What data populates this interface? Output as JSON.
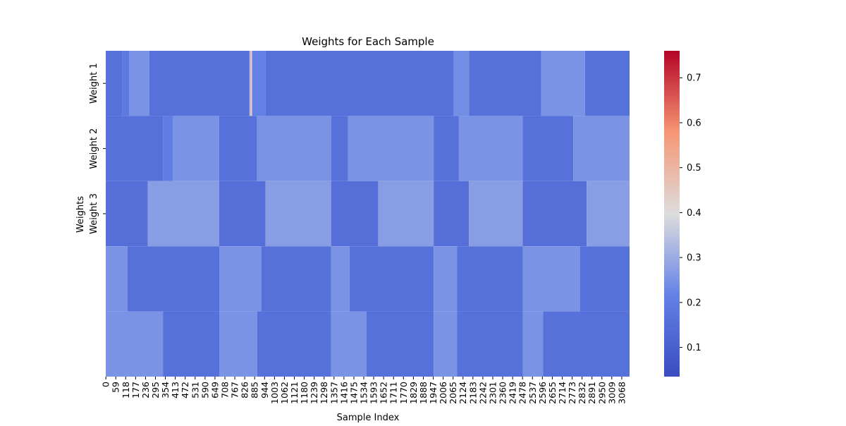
{
  "chart_data": {
    "type": "heatmap",
    "title": "Weights for Each Sample",
    "xlabel": "Sample Index",
    "ylabel": "Weights",
    "row_labels": [
      "Weight 1",
      "Weight 2",
      "Weight 3",
      "",
      ""
    ],
    "x_ticks": [
      0,
      59,
      118,
      177,
      236,
      295,
      354,
      413,
      472,
      531,
      590,
      649,
      708,
      767,
      826,
      885,
      944,
      1003,
      1062,
      1121,
      1180,
      1239,
      1298,
      1357,
      1416,
      1475,
      1534,
      1593,
      1652,
      1711,
      1770,
      1829,
      1888,
      1947,
      2006,
      2065,
      2124,
      2183,
      2242,
      2301,
      2360,
      2419,
      2478,
      2537,
      2596,
      2655,
      2714,
      2773,
      2832,
      2891,
      2950,
      3009,
      3068
    ],
    "x_range": [
      0,
      3115
    ],
    "colorbar": {
      "ticks": [
        0.1,
        0.2,
        0.3,
        0.4,
        0.5,
        0.6,
        0.7
      ],
      "vmin": 0.035,
      "vmax": 0.76,
      "colormap": "coolwarm"
    },
    "row_patterns": [
      [
        {
          "start": 0,
          "end": 100,
          "value": 0.16
        },
        {
          "start": 100,
          "end": 140,
          "value": 0.19
        },
        {
          "start": 140,
          "end": 260,
          "value": 0.25
        },
        {
          "start": 260,
          "end": 855,
          "value": 0.16
        },
        {
          "start": 855,
          "end": 870,
          "value": 0.45
        },
        {
          "start": 870,
          "end": 950,
          "value": 0.21
        },
        {
          "start": 950,
          "end": 2070,
          "value": 0.16
        },
        {
          "start": 2070,
          "end": 2160,
          "value": 0.24
        },
        {
          "start": 2160,
          "end": 2590,
          "value": 0.16
        },
        {
          "start": 2590,
          "end": 2850,
          "value": 0.25
        },
        {
          "start": 2850,
          "end": 3115,
          "value": 0.16
        }
      ],
      [
        {
          "start": 0,
          "end": 340,
          "value": 0.16
        },
        {
          "start": 340,
          "end": 400,
          "value": 0.2
        },
        {
          "start": 400,
          "end": 675,
          "value": 0.25
        },
        {
          "start": 675,
          "end": 900,
          "value": 0.16
        },
        {
          "start": 900,
          "end": 1340,
          "value": 0.25
        },
        {
          "start": 1340,
          "end": 1440,
          "value": 0.16
        },
        {
          "start": 1440,
          "end": 1950,
          "value": 0.25
        },
        {
          "start": 1950,
          "end": 2100,
          "value": 0.16
        },
        {
          "start": 2100,
          "end": 2480,
          "value": 0.25
        },
        {
          "start": 2480,
          "end": 2780,
          "value": 0.16
        },
        {
          "start": 2780,
          "end": 3115,
          "value": 0.25
        }
      ],
      [
        {
          "start": 0,
          "end": 250,
          "value": 0.15
        },
        {
          "start": 250,
          "end": 675,
          "value": 0.27
        },
        {
          "start": 675,
          "end": 950,
          "value": 0.15
        },
        {
          "start": 950,
          "end": 1340,
          "value": 0.27
        },
        {
          "start": 1340,
          "end": 1620,
          "value": 0.15
        },
        {
          "start": 1620,
          "end": 1950,
          "value": 0.27
        },
        {
          "start": 1950,
          "end": 2160,
          "value": 0.15
        },
        {
          "start": 2160,
          "end": 2480,
          "value": 0.27
        },
        {
          "start": 2480,
          "end": 2860,
          "value": 0.15
        },
        {
          "start": 2860,
          "end": 3115,
          "value": 0.27
        }
      ],
      [
        {
          "start": 0,
          "end": 130,
          "value": 0.25
        },
        {
          "start": 130,
          "end": 675,
          "value": 0.16
        },
        {
          "start": 675,
          "end": 925,
          "value": 0.25
        },
        {
          "start": 925,
          "end": 1340,
          "value": 0.16
        },
        {
          "start": 1340,
          "end": 1450,
          "value": 0.25
        },
        {
          "start": 1450,
          "end": 1950,
          "value": 0.16
        },
        {
          "start": 1950,
          "end": 2090,
          "value": 0.25
        },
        {
          "start": 2090,
          "end": 2480,
          "value": 0.16
        },
        {
          "start": 2480,
          "end": 2820,
          "value": 0.25
        },
        {
          "start": 2820,
          "end": 3115,
          "value": 0.16
        }
      ],
      [
        {
          "start": 0,
          "end": 340,
          "value": 0.25
        },
        {
          "start": 340,
          "end": 675,
          "value": 0.16
        },
        {
          "start": 675,
          "end": 900,
          "value": 0.25
        },
        {
          "start": 900,
          "end": 1340,
          "value": 0.16
        },
        {
          "start": 1340,
          "end": 1550,
          "value": 0.25
        },
        {
          "start": 1550,
          "end": 1950,
          "value": 0.16
        },
        {
          "start": 1950,
          "end": 2090,
          "value": 0.25
        },
        {
          "start": 2090,
          "end": 2480,
          "value": 0.16
        },
        {
          "start": 2480,
          "end": 2600,
          "value": 0.25
        },
        {
          "start": 2600,
          "end": 3115,
          "value": 0.16
        }
      ]
    ]
  }
}
